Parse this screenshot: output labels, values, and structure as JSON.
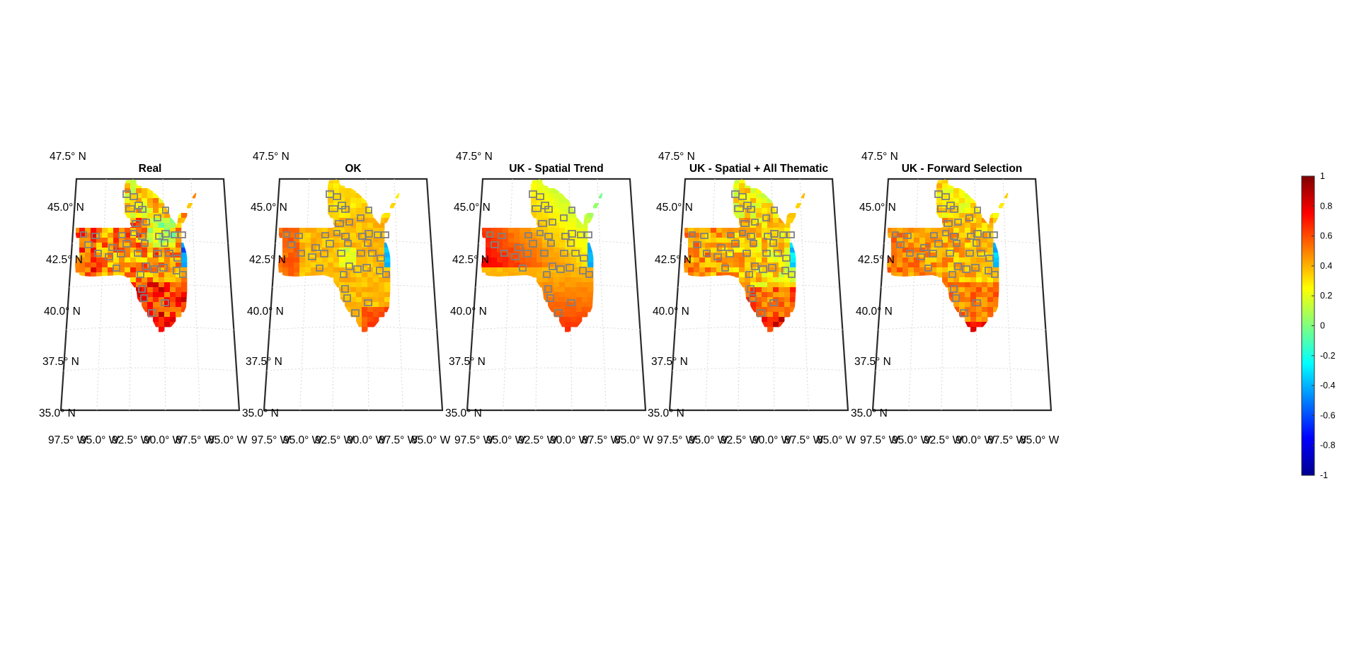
{
  "panels": [
    {
      "title": "Real",
      "style": "real"
    },
    {
      "title": "OK",
      "style": "ok"
    },
    {
      "title": "UK - Spatial Trend",
      "style": "trend"
    },
    {
      "title": "UK - Spatial + All Thematic",
      "style": "thematic"
    },
    {
      "title": "UK - Forward Selection",
      "style": "forward"
    }
  ],
  "lat_labels": [
    "47.5° N",
    "45.0° N",
    "42.5° N",
    "40.0° N",
    "37.5° N",
    "35.0° N"
  ],
  "lon_labels": [
    "97.5° W",
    "95.0° W",
    "92.5° W",
    "90.0° W",
    "87.5° W",
    "85.0° W"
  ],
  "colorbar": {
    "ticks": [
      "1",
      "0.8",
      "0.6",
      "0.4",
      "0.2",
      "0",
      "-0.2",
      "-0.4",
      "-0.6",
      "-0.8",
      "-1"
    ],
    "range": [
      -1,
      1
    ],
    "colormap": "jet"
  },
  "colors": {
    "frame": "#2b2b2b",
    "grid": "#d6d6d6",
    "outlined_county_edge": "#808080"
  }
}
